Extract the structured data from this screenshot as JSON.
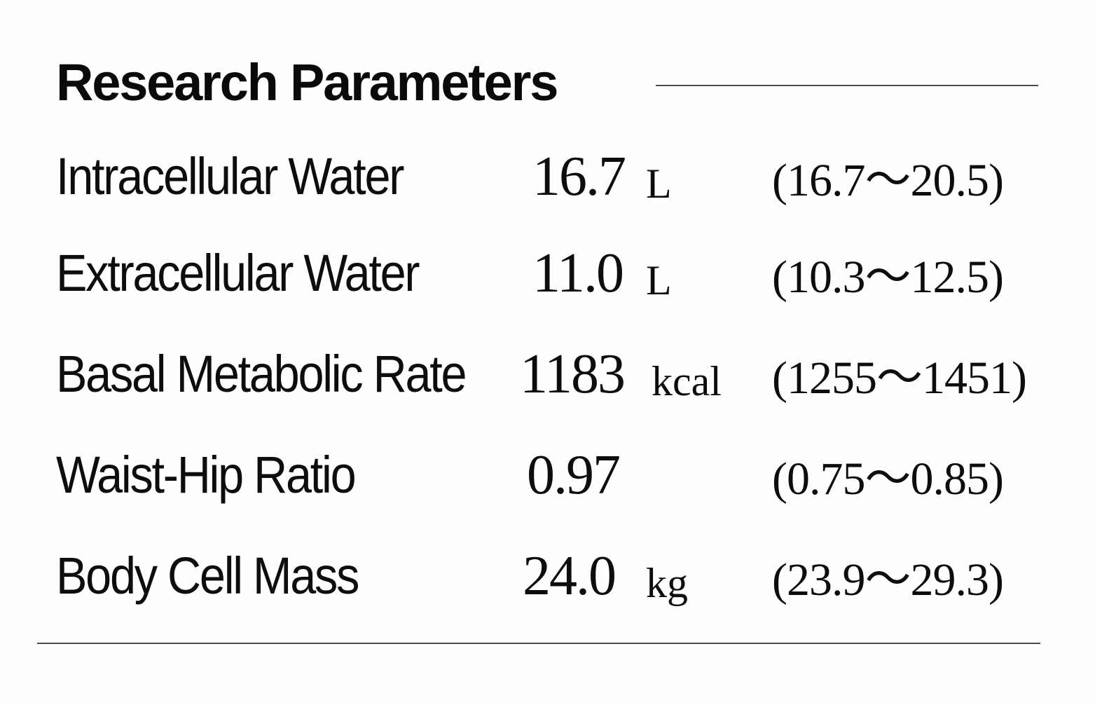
{
  "section": {
    "title": "Research Parameters"
  },
  "rows": [
    {
      "label": "Intracellular Water",
      "value": "16.7",
      "unit": "L",
      "range": "(16.7～20.5)"
    },
    {
      "label": "Extracellular Water",
      "value": "11.0",
      "unit": "L",
      "range": "(10.3～12.5)"
    },
    {
      "label": "Basal Metabolic Rate",
      "value": "1183",
      "unit": "kcal",
      "range": "(1255～1451)"
    },
    {
      "label": "Waist-Hip Ratio",
      "value": "0.97",
      "unit": "",
      "range": "(0.75～0.85)"
    },
    {
      "label": "Body Cell Mass",
      "value": "24.0",
      "unit": "kg",
      "range": "(23.9～29.3)"
    }
  ]
}
